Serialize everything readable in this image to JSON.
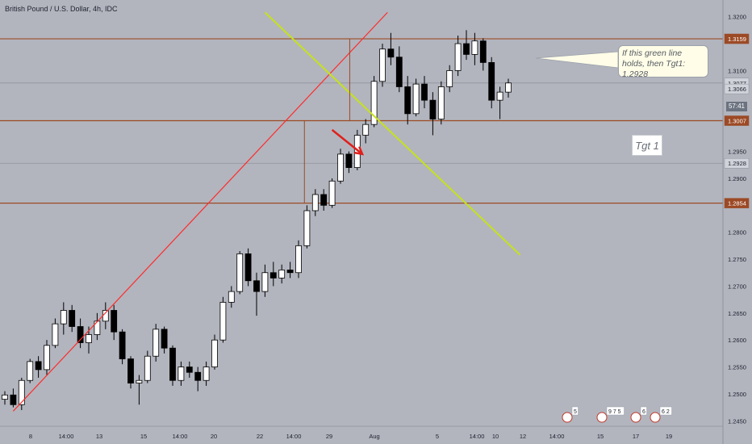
{
  "header": {
    "title": "British Pound / U.S. Dollar, 4h, IDC"
  },
  "chart_data": {
    "type": "candlestick",
    "ylim": [
      1.2419,
      1.3228
    ],
    "y_ticks": [
      "1.3200",
      "1.3100",
      "1.2950",
      "1.2900",
      "1.2800",
      "1.2750",
      "1.2700",
      "1.2650",
      "1.2600",
      "1.2550",
      "1.2500",
      "1.2450"
    ],
    "x_ticks": [
      "8",
      "14:00",
      "13",
      "15",
      "14:00",
      "20",
      "22",
      "14:00",
      "29",
      "Aug",
      "5",
      "14:00",
      "10",
      "12",
      "14:00",
      "15",
      "17",
      "19"
    ],
    "price_labels": [
      {
        "text": "1.3159",
        "value": 1.3159,
        "style": "brown"
      },
      {
        "text": "1.3077",
        "value": 1.3077,
        "style": "plain"
      },
      {
        "text": "1.3066",
        "value": 1.3066,
        "style": "plain"
      },
      {
        "text": "1.3007",
        "value": 1.3007,
        "style": "brown"
      },
      {
        "text": "1.2928",
        "value": 1.2928,
        "style": "plain"
      },
      {
        "text": "1.2854",
        "value": 1.2854,
        "style": "brown"
      }
    ],
    "countdown": "57:41",
    "horizontal_levels": [
      1.3159,
      1.3007,
      1.2854
    ],
    "target_level": 1.2928,
    "current_level": 1.3077,
    "annotations": {
      "note": "If this green line holds, then Tgt1: 1.2928",
      "target": "Tgt 1"
    },
    "calendar_events": [
      "5",
      "9 7 5",
      "6",
      "6 2"
    ],
    "colors": {
      "background": "#b2b5be",
      "level_line": "#9c4a25",
      "trendline_red": "#ff2b2b",
      "trendline_green": "#c6e21b",
      "arrow": "#e0201c",
      "candle_up": "#ffffff",
      "candle_down": "#000000"
    },
    "trendline_red": {
      "from": [
        1.0,
        1.2468
      ],
      "to": [
        45.6,
        1.3208
      ]
    },
    "trendline_green": {
      "from": [
        31.0,
        1.3208
      ],
      "to": [
        61.4,
        1.2758
      ]
    },
    "arrow": {
      "from": [
        39.0,
        1.299
      ],
      "to": [
        42.6,
        1.2945
      ]
    },
    "measure_lines": [
      {
        "x": 41.1,
        "y_from": 1.3159,
        "y_to": 1.3007
      },
      {
        "x": 35.7,
        "y_from": 1.3007,
        "y_to": 1.2854
      }
    ],
    "candles": [
      {
        "o": 1.249,
        "h": 1.2505,
        "l": 1.248,
        "c": 1.2498
      },
      {
        "o": 1.2498,
        "h": 1.251,
        "l": 1.2475,
        "c": 1.248
      },
      {
        "o": 1.248,
        "h": 1.253,
        "l": 1.247,
        "c": 1.2525
      },
      {
        "o": 1.2525,
        "h": 1.2565,
        "l": 1.252,
        "c": 1.256
      },
      {
        "o": 1.256,
        "h": 1.257,
        "l": 1.253,
        "c": 1.2545
      },
      {
        "o": 1.2545,
        "h": 1.26,
        "l": 1.2535,
        "c": 1.259
      },
      {
        "o": 1.259,
        "h": 1.264,
        "l": 1.2585,
        "c": 1.263
      },
      {
        "o": 1.263,
        "h": 1.267,
        "l": 1.261,
        "c": 1.2655
      },
      {
        "o": 1.2655,
        "h": 1.2665,
        "l": 1.2615,
        "c": 1.2625
      },
      {
        "o": 1.2625,
        "h": 1.264,
        "l": 1.2585,
        "c": 1.2595
      },
      {
        "o": 1.2595,
        "h": 1.2625,
        "l": 1.2575,
        "c": 1.261
      },
      {
        "o": 1.261,
        "h": 1.265,
        "l": 1.26,
        "c": 1.2635
      },
      {
        "o": 1.2635,
        "h": 1.267,
        "l": 1.262,
        "c": 1.2655
      },
      {
        "o": 1.2655,
        "h": 1.2665,
        "l": 1.26,
        "c": 1.2615
      },
      {
        "o": 1.2615,
        "h": 1.262,
        "l": 1.2555,
        "c": 1.2565
      },
      {
        "o": 1.2565,
        "h": 1.257,
        "l": 1.251,
        "c": 1.252
      },
      {
        "o": 1.252,
        "h": 1.2535,
        "l": 1.248,
        "c": 1.2525
      },
      {
        "o": 1.2525,
        "h": 1.258,
        "l": 1.252,
        "c": 1.257
      },
      {
        "o": 1.257,
        "h": 1.263,
        "l": 1.256,
        "c": 1.262
      },
      {
        "o": 1.262,
        "h": 1.2625,
        "l": 1.2575,
        "c": 1.2585
      },
      {
        "o": 1.2585,
        "h": 1.259,
        "l": 1.2515,
        "c": 1.2525
      },
      {
        "o": 1.2525,
        "h": 1.256,
        "l": 1.2515,
        "c": 1.255
      },
      {
        "o": 1.255,
        "h": 1.256,
        "l": 1.253,
        "c": 1.254
      },
      {
        "o": 1.254,
        "h": 1.255,
        "l": 1.2505,
        "c": 1.2525
      },
      {
        "o": 1.2525,
        "h": 1.256,
        "l": 1.2515,
        "c": 1.255
      },
      {
        "o": 1.255,
        "h": 1.261,
        "l": 1.2545,
        "c": 1.26
      },
      {
        "o": 1.26,
        "h": 1.268,
        "l": 1.2595,
        "c": 1.267
      },
      {
        "o": 1.267,
        "h": 1.27,
        "l": 1.266,
        "c": 1.269
      },
      {
        "o": 1.269,
        "h": 1.2765,
        "l": 1.2685,
        "c": 1.276
      },
      {
        "o": 1.276,
        "h": 1.277,
        "l": 1.27,
        "c": 1.271
      },
      {
        "o": 1.271,
        "h": 1.2725,
        "l": 1.2645,
        "c": 1.269
      },
      {
        "o": 1.269,
        "h": 1.274,
        "l": 1.268,
        "c": 1.2725
      },
      {
        "o": 1.2725,
        "h": 1.2745,
        "l": 1.27,
        "c": 1.2715
      },
      {
        "o": 1.2715,
        "h": 1.274,
        "l": 1.2705,
        "c": 1.273
      },
      {
        "o": 1.273,
        "h": 1.2745,
        "l": 1.2715,
        "c": 1.2725
      },
      {
        "o": 1.2725,
        "h": 1.2785,
        "l": 1.2715,
        "c": 1.2775
      },
      {
        "o": 1.2775,
        "h": 1.285,
        "l": 1.277,
        "c": 1.284
      },
      {
        "o": 1.284,
        "h": 1.288,
        "l": 1.283,
        "c": 1.287
      },
      {
        "o": 1.287,
        "h": 1.288,
        "l": 1.284,
        "c": 1.285
      },
      {
        "o": 1.285,
        "h": 1.29,
        "l": 1.2845,
        "c": 1.2895
      },
      {
        "o": 1.2895,
        "h": 1.2955,
        "l": 1.289,
        "c": 1.2945
      },
      {
        "o": 1.2945,
        "h": 1.295,
        "l": 1.291,
        "c": 1.292
      },
      {
        "o": 1.292,
        "h": 1.299,
        "l": 1.2915,
        "c": 1.298
      },
      {
        "o": 1.298,
        "h": 1.301,
        "l": 1.2965,
        "c": 1.3
      },
      {
        "o": 1.3,
        "h": 1.309,
        "l": 1.2995,
        "c": 1.308
      },
      {
        "o": 1.308,
        "h": 1.315,
        "l": 1.307,
        "c": 1.314
      },
      {
        "o": 1.314,
        "h": 1.317,
        "l": 1.311,
        "c": 1.3125
      },
      {
        "o": 1.3125,
        "h": 1.3145,
        "l": 1.306,
        "c": 1.307
      },
      {
        "o": 1.307,
        "h": 1.309,
        "l": 1.3,
        "c": 1.302
      },
      {
        "o": 1.302,
        "h": 1.3085,
        "l": 1.3015,
        "c": 1.3075
      },
      {
        "o": 1.3075,
        "h": 1.309,
        "l": 1.303,
        "c": 1.3045
      },
      {
        "o": 1.3045,
        "h": 1.306,
        "l": 1.298,
        "c": 1.301
      },
      {
        "o": 1.301,
        "h": 1.308,
        "l": 1.3,
        "c": 1.307
      },
      {
        "o": 1.307,
        "h": 1.311,
        "l": 1.306,
        "c": 1.31
      },
      {
        "o": 1.31,
        "h": 1.3165,
        "l": 1.309,
        "c": 1.315
      },
      {
        "o": 1.315,
        "h": 1.3175,
        "l": 1.312,
        "c": 1.313
      },
      {
        "o": 1.313,
        "h": 1.317,
        "l": 1.311,
        "c": 1.3155
      },
      {
        "o": 1.3155,
        "h": 1.316,
        "l": 1.31,
        "c": 1.3115
      },
      {
        "o": 1.3115,
        "h": 1.3125,
        "l": 1.303,
        "c": 1.3045
      },
      {
        "o": 1.3045,
        "h": 1.307,
        "l": 1.301,
        "c": 1.306
      },
      {
        "o": 1.306,
        "h": 1.3085,
        "l": 1.305,
        "c": 1.3077
      }
    ]
  }
}
